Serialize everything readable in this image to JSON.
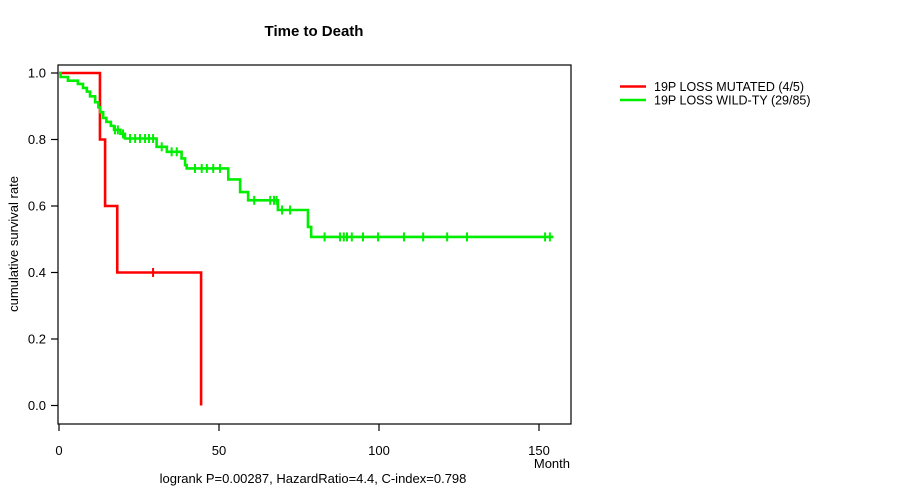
{
  "chart_data": {
    "type": "line",
    "subtype": "kaplan-meier-step",
    "title": "Time to Death",
    "xlabel": "Month",
    "ylabel": "cumulative survival rate",
    "footer": "logrank P=0.00287, HazardRatio=4.4, C-index=0.798",
    "xlim": [
      0,
      160
    ],
    "ylim": [
      0.0,
      1.0
    ],
    "grid": false,
    "legend_position": "right-outside",
    "x_ticks": [
      "0",
      "50",
      "100",
      "150"
    ],
    "x_tick_values": [
      0,
      50,
      100,
      150
    ],
    "y_ticks_top_to_bottom": [
      "1.0",
      "0.8",
      "0.6",
      "0.4",
      "0.2",
      "0.0"
    ],
    "y_tick_values_top_to_bottom": [
      1.0,
      0.8,
      0.6,
      0.4,
      0.2,
      0.0
    ],
    "series": [
      {
        "name": "19P LOSS MUTATED (4/5)",
        "color": "#ff0000",
        "start": [
          0,
          1.0
        ],
        "steps": [
          [
            12.8,
            0.8
          ],
          [
            14.4,
            0.6
          ],
          [
            18.2,
            0.4
          ],
          [
            44.4,
            0.0
          ]
        ],
        "censor_months": [
          29.4
        ],
        "end_month": 44.4
      },
      {
        "name": "19P LOSS WILD-TY (29/85)",
        "color": "#00ee00",
        "start": [
          0,
          1.0
        ],
        "steps": [
          [
            0.5,
            0.988
          ],
          [
            2.8,
            0.977
          ],
          [
            5.9,
            0.967
          ],
          [
            7.5,
            0.955
          ],
          [
            8.7,
            0.944
          ],
          [
            9.7,
            0.93
          ],
          [
            11.3,
            0.912
          ],
          [
            12.3,
            0.897
          ],
          [
            12.9,
            0.882
          ],
          [
            13.8,
            0.865
          ],
          [
            14.8,
            0.853
          ],
          [
            16.2,
            0.841
          ],
          [
            17.2,
            0.829
          ],
          [
            19.2,
            0.817
          ],
          [
            20.6,
            0.803
          ],
          [
            30.5,
            0.778
          ],
          [
            33.7,
            0.763
          ],
          [
            38.3,
            0.743
          ],
          [
            39.4,
            0.723
          ],
          [
            39.9,
            0.713
          ],
          [
            52.9,
            0.68
          ],
          [
            56.6,
            0.642
          ],
          [
            59.1,
            0.617
          ],
          [
            68.4,
            0.588
          ],
          [
            77.8,
            0.537
          ],
          [
            78.8,
            0.507
          ]
        ],
        "censor_months": [
          17.5,
          18.4,
          20.0,
          22.2,
          23.8,
          25.3,
          26.9,
          28.1,
          29.4,
          32.1,
          35.2,
          36.8,
          42.5,
          44.6,
          46.2,
          48.2,
          50.3,
          61.0,
          66.0,
          67.2,
          68.0,
          69.7,
          72.2,
          83.0,
          87.8,
          89.0,
          90.0,
          91.5,
          95.0,
          99.7,
          107.8,
          113.8,
          121.3,
          127.5,
          151.9,
          153.4
        ],
        "end_month": 154.5
      }
    ]
  }
}
